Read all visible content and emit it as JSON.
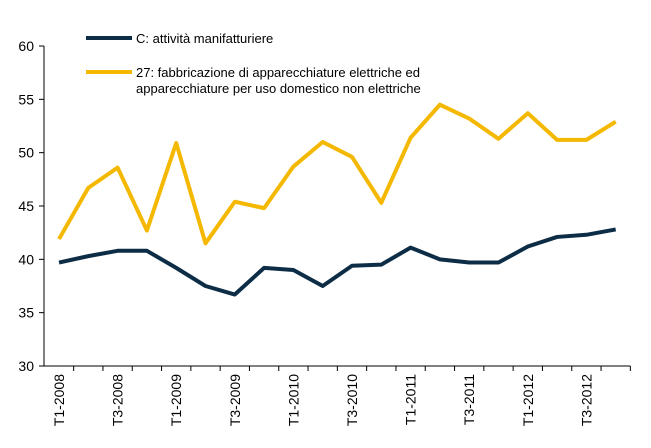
{
  "chart_data": {
    "type": "line",
    "categories": [
      "T1-2008",
      null,
      "T3-2008",
      null,
      "T1-2009",
      null,
      "T3-2009",
      null,
      "T1-2010",
      null,
      "T3-2010",
      null,
      "T1-2011",
      null,
      "T3-2011",
      null,
      "T1-2012",
      null,
      "T3-2012",
      null
    ],
    "series": [
      {
        "name": "C: attività manifatturiere",
        "color": "#0d2d47",
        "values": [
          39.7,
          40.3,
          40.8,
          40.8,
          39.2,
          37.5,
          36.7,
          39.2,
          39.0,
          37.5,
          39.4,
          39.5,
          41.1,
          40.0,
          39.7,
          39.7,
          41.2,
          42.1,
          42.3,
          42.8
        ]
      },
      {
        "name": "27: fabbricazione di apparecchiature elettriche ed\napparecchiature per uso domestico non elettriche",
        "color": "#f5b800",
        "values": [
          41.9,
          46.7,
          48.6,
          42.7,
          50.9,
          41.5,
          45.4,
          44.8,
          48.7,
          51.0,
          49.6,
          45.3,
          51.4,
          54.5,
          53.2,
          51.3,
          53.7,
          51.2,
          51.2,
          52.9
        ]
      }
    ],
    "ylim": [
      30,
      60
    ],
    "yticks": [
      30,
      35,
      40,
      45,
      50,
      55,
      60
    ],
    "grid": false,
    "legend": "top-left"
  }
}
